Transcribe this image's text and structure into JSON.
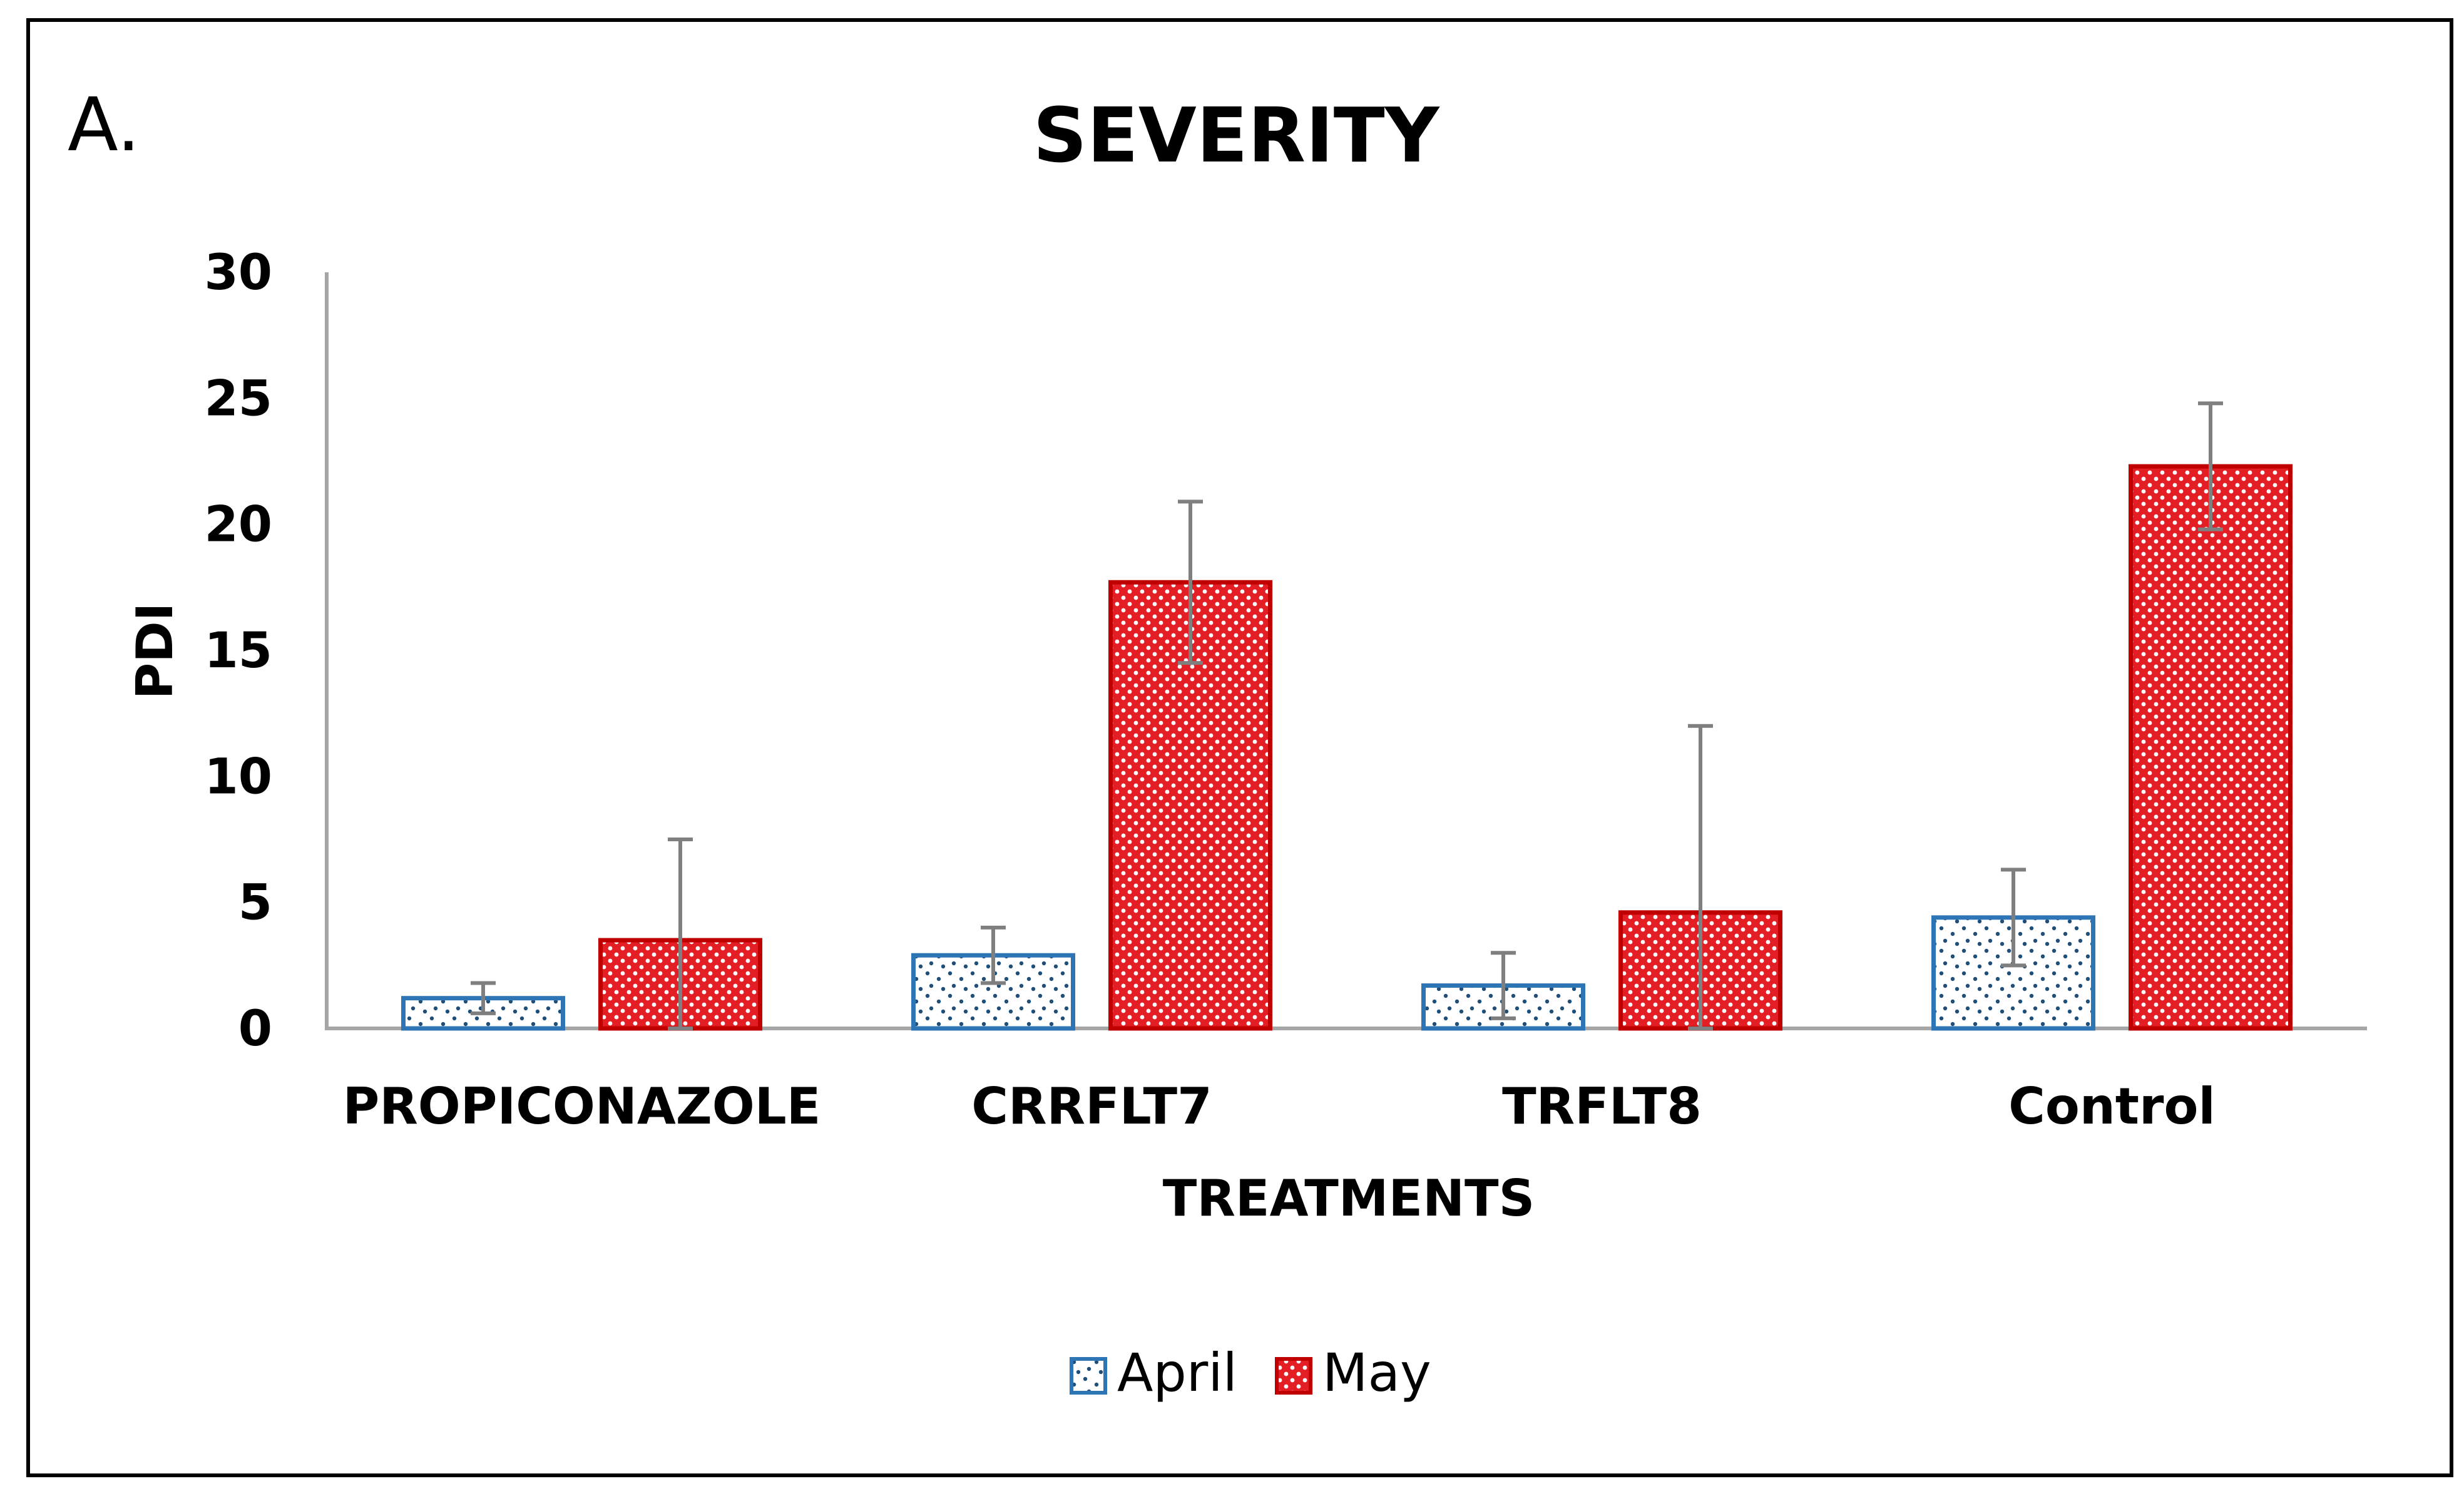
{
  "panel_label": "A.",
  "chart_data": {
    "type": "bar",
    "title": "SEVERITY",
    "xlabel": "TREATMENTS",
    "ylabel": "PDI",
    "ylim": [
      0,
      30
    ],
    "yticks": [
      0,
      5,
      10,
      15,
      20,
      25,
      30
    ],
    "categories": [
      "PROPICONAZOLE",
      "CRRFLT7",
      "TRFLT8",
      "Control"
    ],
    "series": [
      {
        "name": "April",
        "values": [
          1.2,
          2.9,
          1.7,
          4.4
        ],
        "error": [
          0.6,
          1.1,
          1.3,
          1.9
        ],
        "fill": "#ffffff",
        "stroke": "#2e75b6",
        "dot_color": "#1f4e79",
        "pattern": "sparse-dots"
      },
      {
        "name": "May",
        "values": [
          3.5,
          17.7,
          4.6,
          22.3
        ],
        "error": [
          4.0,
          3.2,
          7.4,
          2.5
        ],
        "fill": "#e31e24",
        "stroke": "#c00000",
        "dot_color": "#ffffff",
        "pattern": "dense-dots"
      }
    ],
    "grid": false,
    "legend_position": "bottom",
    "error_bar_color": "#7f7f7f",
    "axis_color": "#a6a6a6"
  }
}
